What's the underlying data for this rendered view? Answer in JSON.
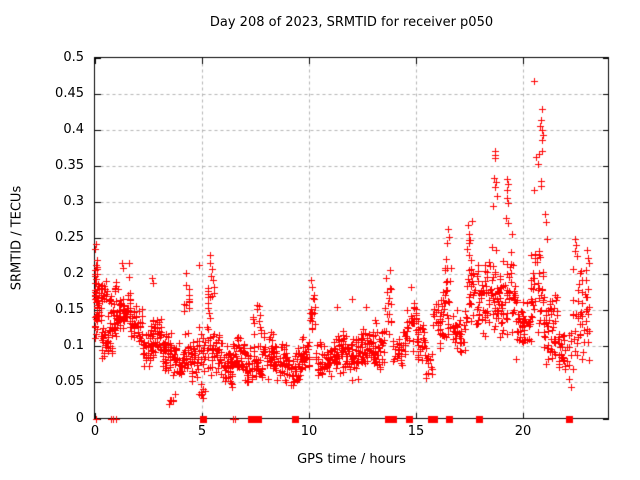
{
  "title": "Day 208 of 2023, SRMTID for receiver p050",
  "chart_data": {
    "type": "scatter",
    "title": "Day 208 of 2023, SRMTID for receiver p050",
    "xlabel": "GPS time / hours",
    "ylabel": "SRMTID / TECUs",
    "xlim": [
      0,
      24
    ],
    "ylim": [
      0,
      0.5
    ],
    "grid": true,
    "legend": "none",
    "marker": "plus",
    "colors": {
      "points": "#ff0000",
      "grid": "#b3b3b3",
      "axis": "#000000",
      "background": "#ffffff",
      "text": "#000000"
    },
    "x_ticks": [
      {
        "v": 0,
        "label": "0"
      },
      {
        "v": 5,
        "label": "5"
      },
      {
        "v": 10,
        "label": "10"
      },
      {
        "v": 15,
        "label": "15"
      },
      {
        "v": 20,
        "label": "20"
      }
    ],
    "y_ticks": [
      {
        "v": 0,
        "label": "0"
      },
      {
        "v": 0.05,
        "label": "0.05"
      },
      {
        "v": 0.1,
        "label": "0.1"
      },
      {
        "v": 0.15,
        "label": "0.15"
      },
      {
        "v": 0.2,
        "label": "0.2"
      },
      {
        "v": 0.25,
        "label": "0.25"
      },
      {
        "v": 0.3,
        "label": "0.3"
      },
      {
        "v": 0.35,
        "label": "0.35"
      },
      {
        "v": 0.4,
        "label": "0.4"
      },
      {
        "v": 0.45,
        "label": "0.45"
      },
      {
        "v": 0.5,
        "label": "0.5"
      }
    ],
    "estimation_note": "Dense scatter approximated as density envelopes [hour_start, hour_end, y_min, y_max, point_count] read off the plot; distinct high points listed individually in outlier_points.",
    "seed": 1000,
    "clusters": [
      [
        0.0,
        0.15,
        0.1,
        0.24,
        40
      ],
      [
        0.05,
        0.35,
        0.13,
        0.2,
        22
      ],
      [
        0.3,
        0.6,
        0.15,
        0.21,
        16
      ],
      [
        0.3,
        0.65,
        0.07,
        0.13,
        20
      ],
      [
        0.6,
        0.85,
        0.09,
        0.14,
        16
      ],
      [
        0.62,
        0.78,
        0.14,
        0.18,
        8
      ],
      [
        0.85,
        1.35,
        0.11,
        0.17,
        48
      ],
      [
        0.9,
        1.15,
        0.17,
        0.19,
        6
      ],
      [
        1.3,
        1.7,
        0.12,
        0.18,
        30
      ],
      [
        1.7,
        2.25,
        0.1,
        0.16,
        38
      ],
      [
        2.25,
        2.65,
        0.06,
        0.12,
        30
      ],
      [
        2.6,
        3.15,
        0.08,
        0.15,
        40
      ],
      [
        3.15,
        3.65,
        0.06,
        0.13,
        38
      ],
      [
        3.45,
        3.8,
        0.01,
        0.04,
        7
      ],
      [
        3.65,
        4.15,
        0.05,
        0.11,
        34
      ],
      [
        4.15,
        4.45,
        0.13,
        0.2,
        12
      ],
      [
        4.15,
        4.5,
        0.06,
        0.13,
        20
      ],
      [
        4.5,
        4.85,
        0.05,
        0.11,
        28
      ],
      [
        4.85,
        5.2,
        0.02,
        0.06,
        8
      ],
      [
        4.85,
        5.35,
        0.06,
        0.14,
        25
      ],
      [
        5.25,
        5.6,
        0.13,
        0.225,
        14
      ],
      [
        5.35,
        5.95,
        0.05,
        0.13,
        40
      ],
      [
        5.95,
        6.45,
        0.04,
        0.11,
        40
      ],
      [
        6.45,
        7.0,
        0.05,
        0.12,
        40
      ],
      [
        7.0,
        7.4,
        0.04,
        0.1,
        30
      ],
      [
        7.35,
        7.8,
        0.11,
        0.165,
        12
      ],
      [
        7.4,
        7.85,
        0.04,
        0.11,
        28
      ],
      [
        7.85,
        8.35,
        0.05,
        0.13,
        36
      ],
      [
        8.35,
        9.05,
        0.045,
        0.11,
        48
      ],
      [
        9.05,
        9.65,
        0.04,
        0.1,
        40
      ],
      [
        9.65,
        10.05,
        0.05,
        0.12,
        26
      ],
      [
        10.05,
        10.3,
        0.1,
        0.19,
        16
      ],
      [
        10.3,
        11.05,
        0.05,
        0.11,
        52
      ],
      [
        11.05,
        11.65,
        0.06,
        0.13,
        46
      ],
      [
        11.65,
        12.35,
        0.05,
        0.12,
        50
      ],
      [
        12.35,
        13.05,
        0.06,
        0.13,
        50
      ],
      [
        13.05,
        13.55,
        0.06,
        0.14,
        40
      ],
      [
        13.55,
        13.9,
        0.1,
        0.2,
        14
      ],
      [
        13.9,
        14.55,
        0.07,
        0.13,
        36
      ],
      [
        14.55,
        15.05,
        0.09,
        0.18,
        30
      ],
      [
        15.05,
        15.45,
        0.07,
        0.15,
        28
      ],
      [
        15.45,
        15.8,
        0.04,
        0.11,
        16
      ],
      [
        15.8,
        16.35,
        0.09,
        0.19,
        36
      ],
      [
        16.35,
        16.7,
        0.1,
        0.24,
        22
      ],
      [
        16.7,
        17.35,
        0.08,
        0.16,
        36
      ],
      [
        17.35,
        17.8,
        0.12,
        0.26,
        28
      ],
      [
        17.8,
        18.55,
        0.1,
        0.23,
        48
      ],
      [
        18.55,
        19.05,
        0.1,
        0.24,
        42
      ],
      [
        19.05,
        19.65,
        0.1,
        0.26,
        40
      ],
      [
        19.65,
        20.35,
        0.08,
        0.18,
        46
      ],
      [
        20.35,
        20.95,
        0.1,
        0.25,
        42
      ],
      [
        20.95,
        21.65,
        0.07,
        0.19,
        52
      ],
      [
        21.65,
        22.0,
        0.04,
        0.13,
        24
      ],
      [
        22.0,
        22.3,
        0.04,
        0.15,
        10
      ],
      [
        22.3,
        22.8,
        0.05,
        0.235,
        32
      ],
      [
        22.8,
        23.15,
        0.05,
        0.21,
        20
      ]
    ],
    "outlier_points": [
      [
        0.07,
        0.242
      ],
      [
        1.3,
        0.215
      ],
      [
        1.35,
        0.208
      ],
      [
        1.6,
        0.215
      ],
      [
        1.63,
        0.196
      ],
      [
        2.7,
        0.195
      ],
      [
        2.75,
        0.188
      ],
      [
        4.25,
        0.202
      ],
      [
        4.9,
        0.212
      ],
      [
        5.4,
        0.226
      ],
      [
        5.38,
        0.215
      ],
      [
        5.45,
        0.198
      ],
      [
        10.12,
        0.192
      ],
      [
        11.3,
        0.155
      ],
      [
        12.0,
        0.165
      ],
      [
        12.7,
        0.155
      ],
      [
        13.6,
        0.195
      ],
      [
        13.8,
        0.205
      ],
      [
        14.8,
        0.182
      ],
      [
        16.5,
        0.262
      ],
      [
        16.55,
        0.252
      ],
      [
        16.45,
        0.243
      ],
      [
        17.45,
        0.268
      ],
      [
        17.5,
        0.256
      ],
      [
        17.62,
        0.273
      ],
      [
        17.55,
        0.247
      ],
      [
        18.7,
        0.37
      ],
      [
        18.72,
        0.365
      ],
      [
        18.68,
        0.361
      ],
      [
        18.65,
        0.333
      ],
      [
        18.75,
        0.327
      ],
      [
        18.7,
        0.321
      ],
      [
        18.8,
        0.308
      ],
      [
        18.62,
        0.295
      ],
      [
        19.25,
        0.332
      ],
      [
        19.3,
        0.325
      ],
      [
        19.28,
        0.317
      ],
      [
        19.25,
        0.305
      ],
      [
        19.32,
        0.299
      ],
      [
        19.2,
        0.278
      ],
      [
        19.3,
        0.271
      ],
      [
        19.5,
        0.255
      ],
      [
        20.53,
        0.468
      ],
      [
        20.9,
        0.428
      ],
      [
        20.85,
        0.414
      ],
      [
        20.8,
        0.405
      ],
      [
        20.9,
        0.4
      ],
      [
        20.95,
        0.393
      ],
      [
        20.88,
        0.386
      ],
      [
        20.9,
        0.37
      ],
      [
        20.75,
        0.366
      ],
      [
        20.6,
        0.362
      ],
      [
        20.7,
        0.353
      ],
      [
        20.85,
        0.329
      ],
      [
        20.87,
        0.322
      ],
      [
        20.5,
        0.317
      ],
      [
        21.05,
        0.283
      ],
      [
        21.1,
        0.272
      ],
      [
        21.15,
        0.248
      ],
      [
        22.45,
        0.248
      ],
      [
        22.5,
        0.24
      ],
      [
        22.42,
        0.232
      ],
      [
        22.55,
        0.225
      ],
      [
        23.0,
        0.233
      ],
      [
        23.05,
        0.222
      ],
      [
        23.1,
        0.215
      ],
      [
        22.95,
        0.205
      ]
    ],
    "zero_markers": {
      "thin": [
        0.05,
        0.78,
        0.88,
        1.0,
        6.45,
        6.55
      ],
      "bold": [
        5.05,
        7.3,
        7.65,
        9.35,
        13.7,
        13.95,
        14.7,
        15.7,
        15.85,
        16.55,
        17.95,
        22.15
      ]
    }
  }
}
